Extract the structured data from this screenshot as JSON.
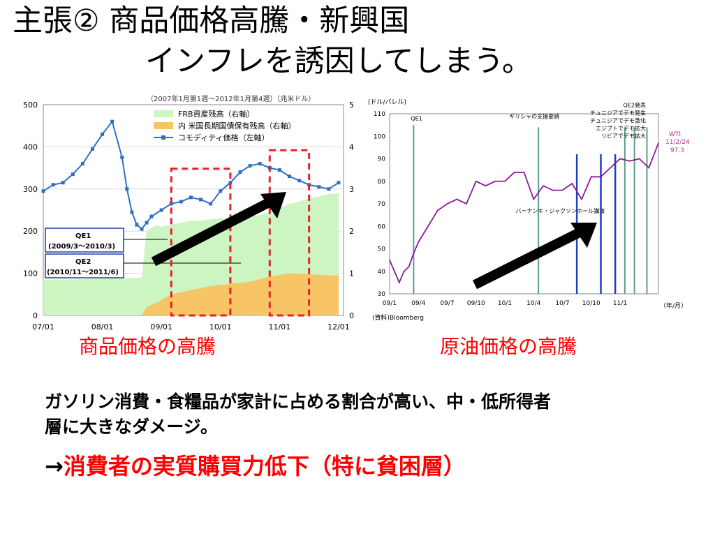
{
  "slide": {
    "title_line1": "主張② 商品価格高騰・新興国",
    "title_line2": "インフレを誘因してしまう。",
    "caption_left": "商品価格の高騰",
    "caption_right": "原油価格の高騰",
    "body_line1": "ガソリン消費・食糧品が家計に占める割合が高い、中・低所得者",
    "body_line2": "層に大きなダメージ。",
    "arrow_text": "→",
    "conclusion": "消費者の実質購買力低下（特に貧困層）",
    "colors": {
      "accent_red": "#ff0000",
      "arrow": "#000000"
    }
  },
  "chart_data": [
    {
      "type": "area",
      "subtitle": "（2007年1月第1週〜2012年1月第4週）（兆米ドル）",
      "x_ticks": [
        "07/01",
        "08/01",
        "09/01",
        "10/01",
        "11/01",
        "12/01"
      ],
      "xlim": [
        0,
        61
      ],
      "ylim_left": [
        0,
        500
      ],
      "y_ticks_left": [
        "0",
        "100",
        "200",
        "300",
        "400",
        "500"
      ],
      "ylim_right": [
        0,
        5
      ],
      "y_ticks_right": [
        "0",
        "1",
        "2",
        "3",
        "4",
        "5"
      ],
      "legend": [
        {
          "label": "FRB資産残高（右軸）",
          "color": "#ccf5c2",
          "kind": "area"
        },
        {
          "label": "内 米国長期国債保有残高（右軸）",
          "color": "#f7c566",
          "kind": "area"
        },
        {
          "label": "コモディティ価格（左軸）",
          "color": "#2e6fc2",
          "kind": "line"
        }
      ],
      "series": [
        {
          "name": "FRB資産残高（右軸）",
          "axis": "right",
          "x": [
            0,
            5,
            10,
            15,
            18,
            20,
            21,
            23,
            24,
            26,
            28,
            30,
            32,
            34,
            36,
            38,
            40,
            42,
            44,
            46,
            48,
            50,
            52,
            54,
            56,
            58,
            60
          ],
          "values": [
            0.85,
            0.85,
            0.87,
            0.88,
            0.88,
            0.9,
            2.0,
            2.15,
            2.1,
            2.15,
            2.2,
            2.25,
            2.25,
            2.28,
            2.3,
            2.3,
            2.32,
            2.35,
            2.38,
            2.45,
            2.55,
            2.65,
            2.7,
            2.78,
            2.82,
            2.88,
            2.9
          ]
        },
        {
          "name": "内 米国長期国債保有残高（右軸）",
          "axis": "right",
          "x": [
            20,
            21,
            23,
            26,
            30,
            34,
            38,
            42,
            46,
            50,
            54,
            58,
            60
          ],
          "values": [
            0,
            0.2,
            0.3,
            0.5,
            0.6,
            0.7,
            0.75,
            0.8,
            0.92,
            1.0,
            0.98,
            0.95,
            0.95
          ]
        },
        {
          "name": "コモディティ価格（左軸）",
          "axis": "left",
          "x": [
            0,
            2,
            4,
            6,
            8,
            10,
            12,
            14,
            16,
            17,
            18,
            19,
            20,
            21,
            22,
            24,
            26,
            28,
            30,
            32,
            34,
            36,
            38,
            40,
            42,
            44,
            46,
            48,
            50,
            52,
            54,
            56,
            58,
            60
          ],
          "values": [
            295,
            310,
            315,
            335,
            360,
            395,
            430,
            460,
            375,
            300,
            245,
            215,
            205,
            220,
            235,
            250,
            265,
            270,
            280,
            275,
            265,
            295,
            315,
            340,
            355,
            360,
            350,
            345,
            330,
            320,
            310,
            305,
            300,
            315
          ]
        }
      ],
      "annotations": [
        {
          "label": "QE1",
          "sublabel": "(2009/3〜2010/3)",
          "x_range": [
            26,
            38
          ]
        },
        {
          "label": "QE2",
          "sublabel": "(2010/11〜2011/6)",
          "x_range": [
            46,
            54
          ]
        }
      ]
    },
    {
      "type": "line",
      "unit_label": "(ドル/バレル)",
      "source": "(資料)Bloomberg",
      "x_unit": "（年/月）",
      "x_ticks": [
        "09/1",
        "09/4",
        "09/7",
        "09/10",
        "10/1",
        "10/4",
        "10/7",
        "10/10",
        "11/1"
      ],
      "xlim": [
        0,
        28
      ],
      "ylim": [
        30,
        110
      ],
      "y_ticks": [
        "30",
        "40",
        "50",
        "60",
        "70",
        "80",
        "90",
        "100",
        "110"
      ],
      "series": [
        {
          "name": "WTI",
          "x": [
            0,
            0.5,
            1,
            1.5,
            2,
            2.5,
            3,
            4,
            5,
            6,
            7,
            8,
            9,
            10,
            11,
            12,
            13,
            14,
            15,
            16,
            17,
            18,
            19,
            20,
            21,
            22,
            23,
            24,
            25,
            26,
            27,
            28
          ],
          "values": [
            45,
            40,
            35,
            40,
            42,
            48,
            53,
            60,
            67,
            70,
            72,
            70,
            80,
            78,
            80,
            80,
            84,
            84,
            72,
            78,
            76,
            76,
            79,
            72,
            82,
            82,
            86,
            90,
            89,
            90,
            86,
            97
          ]
        }
      ],
      "vertical_events": [
        {
          "label": "QE1",
          "x": 2.5,
          "color": "#5c9e8a"
        },
        {
          "label": "ギリシャの支援要請",
          "x": 15.5,
          "color": "#5c9e8a"
        },
        {
          "label": "バーナンキ・ジャクソンホール講演",
          "x": 19.5,
          "color": "#1f3fcc"
        },
        {
          "label": "QE2発表",
          "x": 22.0,
          "color": "#1f3fcc"
        },
        {
          "label": "チュニジアでデモ発生",
          "x": 23.5,
          "color": "#1f3fcc"
        },
        {
          "label": "チュニジアでデモ激化",
          "x": 24.5,
          "color": "#5c9e8a"
        },
        {
          "label": "エジプトでデモ拡大",
          "x": 25.5,
          "color": "#5c9e8a"
        },
        {
          "label": "リビアでデモ拡大",
          "x": 26.8,
          "color": "#5c9e8a"
        }
      ],
      "end_label": {
        "name": "WTI",
        "date": "11/2/24",
        "value": "97.3"
      }
    }
  ]
}
